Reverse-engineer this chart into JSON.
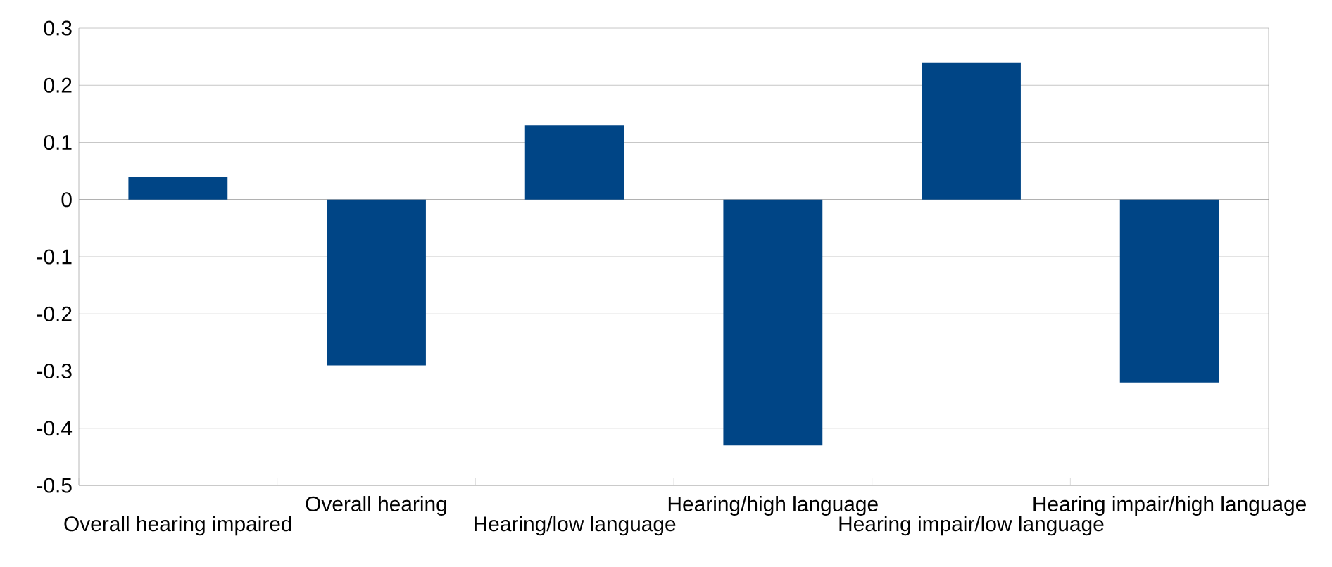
{
  "chart_data": {
    "type": "bar",
    "categories": [
      "Overall hearing impaired",
      "Overall hearing",
      "Hearing/low language",
      "Hearing/high language",
      "Hearing impair/low language",
      "Hearing impair/high language"
    ],
    "values": [
      0.04,
      -0.29,
      0.13,
      -0.43,
      0.24,
      -0.32
    ],
    "color": "#004586",
    "ylim": [
      -0.5,
      0.3
    ],
    "yticks": [
      -0.5,
      -0.4,
      -0.3,
      -0.2,
      -0.1,
      0,
      0.1,
      0.2,
      0.3
    ],
    "grid": "y"
  }
}
